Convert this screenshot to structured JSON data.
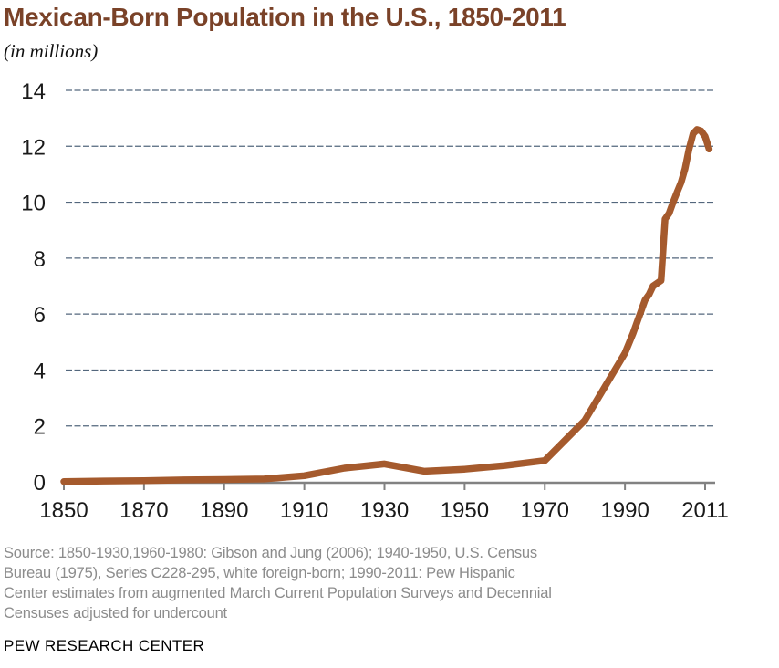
{
  "header": {
    "title": "Mexican-Born Population in the U.S., 1850-2011",
    "subtitle": "(in millions)"
  },
  "chart_data": {
    "type": "line",
    "title": "Mexican-Born Population in the U.S., 1850-2011",
    "units": "millions of people",
    "series_name": "Mexican-born population in the U.S.",
    "x": [
      1850,
      1860,
      1870,
      1880,
      1890,
      1900,
      1910,
      1920,
      1930,
      1940,
      1950,
      1960,
      1970,
      1980,
      1990,
      1991,
      1992,
      1993,
      1994,
      1995,
      1996,
      1997,
      1998,
      1999,
      2000,
      2001,
      2002,
      2003,
      2004,
      2005,
      2006,
      2007,
      2008,
      2009,
      2010,
      2011
    ],
    "values": [
      0.01,
      0.03,
      0.04,
      0.07,
      0.08,
      0.1,
      0.22,
      0.49,
      0.64,
      0.38,
      0.45,
      0.58,
      0.76,
      2.2,
      4.6,
      4.95,
      5.3,
      5.7,
      6.1,
      6.5,
      6.7,
      7.0,
      7.1,
      7.2,
      9.4,
      9.6,
      10.0,
      10.35,
      10.7,
      11.2,
      11.9,
      12.45,
      12.6,
      12.55,
      12.35,
      11.9
    ],
    "x_tick_labels": [
      "1850",
      "1870",
      "1890",
      "1910",
      "1930",
      "1950",
      "1970",
      "1990",
      "2011"
    ],
    "y_ticks": [
      0,
      2,
      4,
      6,
      8,
      10,
      12,
      14
    ],
    "ylim": [
      0,
      14
    ],
    "xlim": [
      1850,
      2011
    ],
    "grid": "horizontal dashed gridlines, solid bottom axis, no vertical axis line",
    "legend": "none",
    "line_color": "#a55a2d"
  },
  "colors": {
    "title_brown": "#7a4228",
    "line_brown": "#a55a2d",
    "gridline_slate": "#53677d",
    "axis_gray": "#828282",
    "axis_label": "#1a1a1a",
    "source_gray": "#8c8c8c",
    "branding_black": "#000000"
  },
  "footer": {
    "source_lines": [
      "Source: 1850-1930,1960-1980: Gibson and Jung (2006); 1940-1950, U.S. Census",
      "Bureau (1975), Series C228-295, white foreign-born; 1990-2011: Pew Hispanic",
      "Center estimates from augmented March Current Population Surveys and Decennial",
      "Censuses adjusted for undercount"
    ],
    "branding": "PEW RESEARCH CENTER"
  }
}
